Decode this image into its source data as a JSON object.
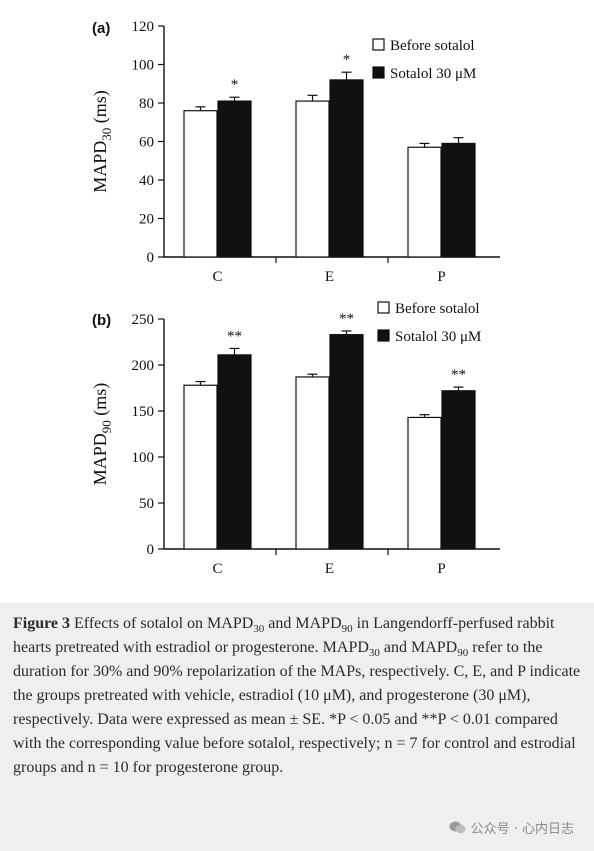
{
  "chart_data": [
    {
      "type": "bar",
      "panel_label": "(a)",
      "categories": [
        "C",
        "E",
        "P"
      ],
      "ylabel_main": "MAPD",
      "ylabel_sub": "30",
      "ylabel_suffix": " (ms)",
      "ylim": [
        0,
        120
      ],
      "yticks": [
        0,
        20,
        40,
        60,
        80,
        100,
        120
      ],
      "series": [
        {
          "name": "Before sotalol",
          "values": [
            76,
            81,
            57
          ],
          "errors": [
            2,
            3,
            2
          ],
          "color": "#ffffff"
        },
        {
          "name": "Sotalol 30 μM",
          "values": [
            81,
            92,
            59
          ],
          "errors": [
            2,
            4,
            3
          ],
          "color": "#111111"
        }
      ],
      "significance": [
        {
          "category": "C",
          "series": 1,
          "mark": "*"
        },
        {
          "category": "E",
          "series": 1,
          "mark": "*"
        }
      ],
      "legend_position": "top-right"
    },
    {
      "type": "bar",
      "panel_label": "(b)",
      "categories": [
        "C",
        "E",
        "P"
      ],
      "ylabel_main": "MAPD",
      "ylabel_sub": "90",
      "ylabel_suffix": " (ms)",
      "ylim": [
        0,
        250
      ],
      "yticks": [
        0,
        50,
        100,
        150,
        200,
        250
      ],
      "series": [
        {
          "name": "Before sotalol",
          "values": [
            178,
            187,
            143
          ],
          "errors": [
            4,
            3,
            3
          ],
          "color": "#ffffff"
        },
        {
          "name": "Sotalol 30 μM",
          "values": [
            211,
            233,
            172
          ],
          "errors": [
            7,
            4,
            4
          ],
          "color": "#111111"
        }
      ],
      "significance": [
        {
          "category": "C",
          "series": 1,
          "mark": "**"
        },
        {
          "category": "E",
          "series": 1,
          "mark": "**"
        },
        {
          "category": "P",
          "series": 1,
          "mark": "**"
        }
      ],
      "legend_position": "top-right"
    }
  ],
  "caption": {
    "figure_number": "Figure 3",
    "line1_pre": "Effects of sotalol on MAPD",
    "line1_sub1": "30",
    "line1_mid": " and MAPD",
    "line1_sub2": "90",
    "line1_post": " in Langendorff-perfused rabbit hearts pretreated with estradiol or progesterone. MAPD",
    "line2_sub1": "30",
    "line2_mid": " and MAPD",
    "line2_sub2": "90",
    "line2_post": " refer to the duration for 30% and 90% repolarization of the MAPs, respectively. C, E, and P indicate the groups pretreated with vehicle, estradiol (10 μM), and progesterone (30 μM), respectively. Data were expressed as mean ± SE. *P < 0.05 and **P < 0.01 compared with the corresponding value before sotalol, respectively; n = 7 for control and estrodial groups and n = 10 for progesterone group."
  },
  "watermark": {
    "text": "公众号 · 心内日志",
    "icon": "wechat-icon"
  }
}
